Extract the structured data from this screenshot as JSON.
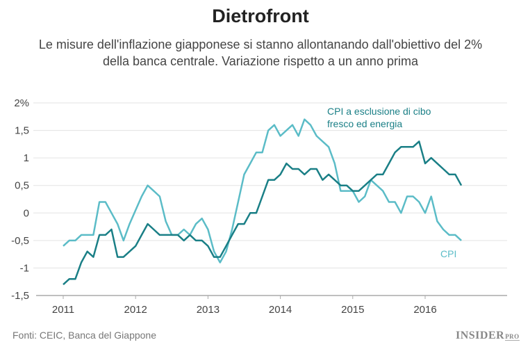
{
  "header": {
    "title": "Dietrofront",
    "subtitle": "Le misure dell'inflazione giapponese si stanno allontanando dall'obiettivo del 2% della banca centrale. Variazione rispetto a un anno prima"
  },
  "footer": {
    "source": "Fonti: CEIC, Banca del Giappone",
    "logo": "INSIDER",
    "logo_suffix": "PRO"
  },
  "chart_data": {
    "type": "line",
    "x_start": "2011-01",
    "x_frequency": "monthly",
    "ylim": [
      -1.5,
      2
    ],
    "yticks": [
      "2%",
      "1,5",
      "1",
      "0,5",
      "0",
      "-0,5",
      "-1",
      "-1,5"
    ],
    "ytick_values": [
      2,
      1.5,
      1,
      0.5,
      0,
      -0.5,
      -1,
      -1.5
    ],
    "xticks": [
      "2011",
      "2012",
      "2013",
      "2014",
      "2015",
      "2016"
    ],
    "grid": true,
    "series": [
      {
        "name": "CPI a esclusione di cibo fresco ed energia",
        "color": "#1a7f86",
        "values": [
          -1.3,
          -1.2,
          -1.2,
          -0.9,
          -0.7,
          -0.8,
          -0.4,
          -0.4,
          -0.3,
          -0.8,
          -0.8,
          -0.7,
          -0.6,
          -0.4,
          -0.2,
          -0.3,
          -0.4,
          -0.4,
          -0.4,
          -0.4,
          -0.5,
          -0.4,
          -0.5,
          -0.5,
          -0.6,
          -0.8,
          -0.8,
          -0.6,
          -0.4,
          -0.2,
          -0.2,
          0.0,
          0.0,
          0.3,
          0.6,
          0.6,
          0.7,
          0.9,
          0.8,
          0.8,
          0.7,
          0.8,
          0.8,
          0.6,
          0.7,
          0.6,
          0.5,
          0.5,
          0.4,
          0.4,
          0.5,
          0.6,
          0.7,
          0.7,
          0.9,
          1.1,
          1.2,
          1.2,
          1.2,
          1.3,
          0.9,
          1.0,
          0.9,
          0.8,
          0.7,
          0.7,
          0.5
        ]
      },
      {
        "name": "CPI",
        "color": "#5bbcc7",
        "values": [
          -0.6,
          -0.5,
          -0.5,
          -0.4,
          -0.4,
          -0.4,
          0.2,
          0.2,
          0.0,
          -0.2,
          -0.5,
          -0.2,
          0.05,
          0.3,
          0.5,
          0.4,
          0.3,
          -0.15,
          -0.4,
          -0.4,
          -0.3,
          -0.4,
          -0.2,
          -0.1,
          -0.3,
          -0.7,
          -0.9,
          -0.7,
          -0.3,
          0.2,
          0.7,
          0.9,
          1.1,
          1.1,
          1.5,
          1.6,
          1.4,
          1.5,
          1.6,
          1.4,
          1.7,
          1.6,
          1.4,
          1.3,
          1.2,
          0.9,
          0.4,
          0.4,
          0.4,
          0.2,
          0.3,
          0.6,
          0.5,
          0.4,
          0.2,
          0.2,
          0.0,
          0.3,
          0.3,
          0.2,
          0.0,
          0.3,
          -0.15,
          -0.3,
          -0.4,
          -0.4,
          -0.5
        ]
      }
    ]
  }
}
